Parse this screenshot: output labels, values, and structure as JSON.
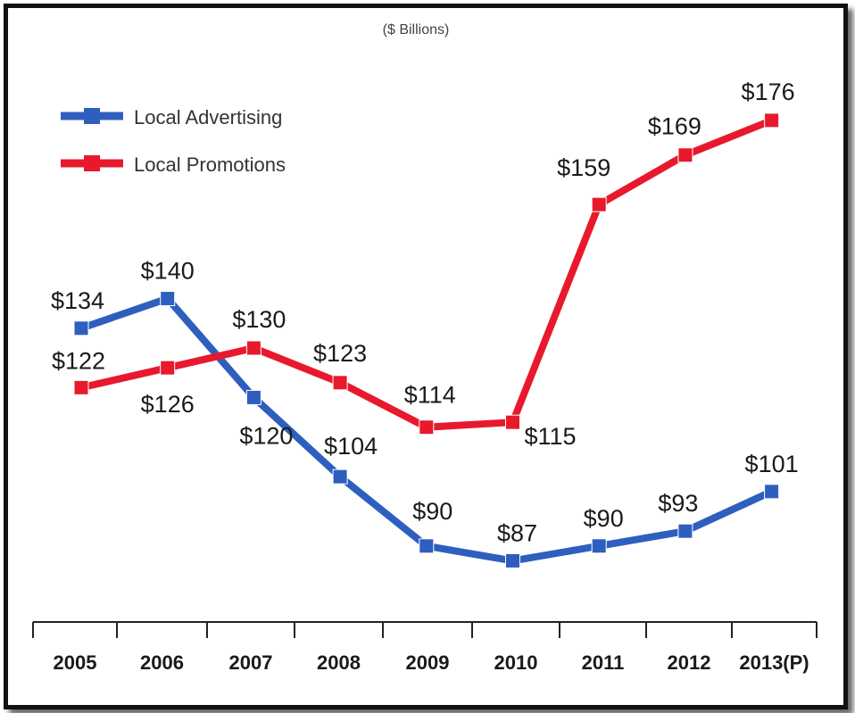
{
  "chart_data": {
    "type": "line",
    "title": "($ Billions)",
    "xlabel": "",
    "ylabel": "",
    "categories": [
      "2005",
      "2006",
      "2007",
      "2008",
      "2009",
      "2010",
      "2011",
      "2012",
      "2013(P)"
    ],
    "series": [
      {
        "name": "Local Advertising",
        "color": "#2e5fbf",
        "values": [
          134,
          140,
          120,
          104,
          90,
          87,
          90,
          93,
          101
        ],
        "labels": [
          "$134",
          "$140",
          "$120",
          "$104",
          "$90",
          "$87",
          "$90",
          "$93",
          "$101"
        ]
      },
      {
        "name": "Local Promotions",
        "color": "#e8192c",
        "values": [
          122,
          126,
          130,
          123,
          114,
          115,
          159,
          169,
          176
        ],
        "labels": [
          "$122",
          "$126",
          "$130",
          "$123",
          "$114",
          "$115",
          "$159",
          "$169",
          "$176"
        ]
      }
    ],
    "ylim": [
      75,
      185
    ],
    "legend_position": "top-left",
    "grid": false
  }
}
